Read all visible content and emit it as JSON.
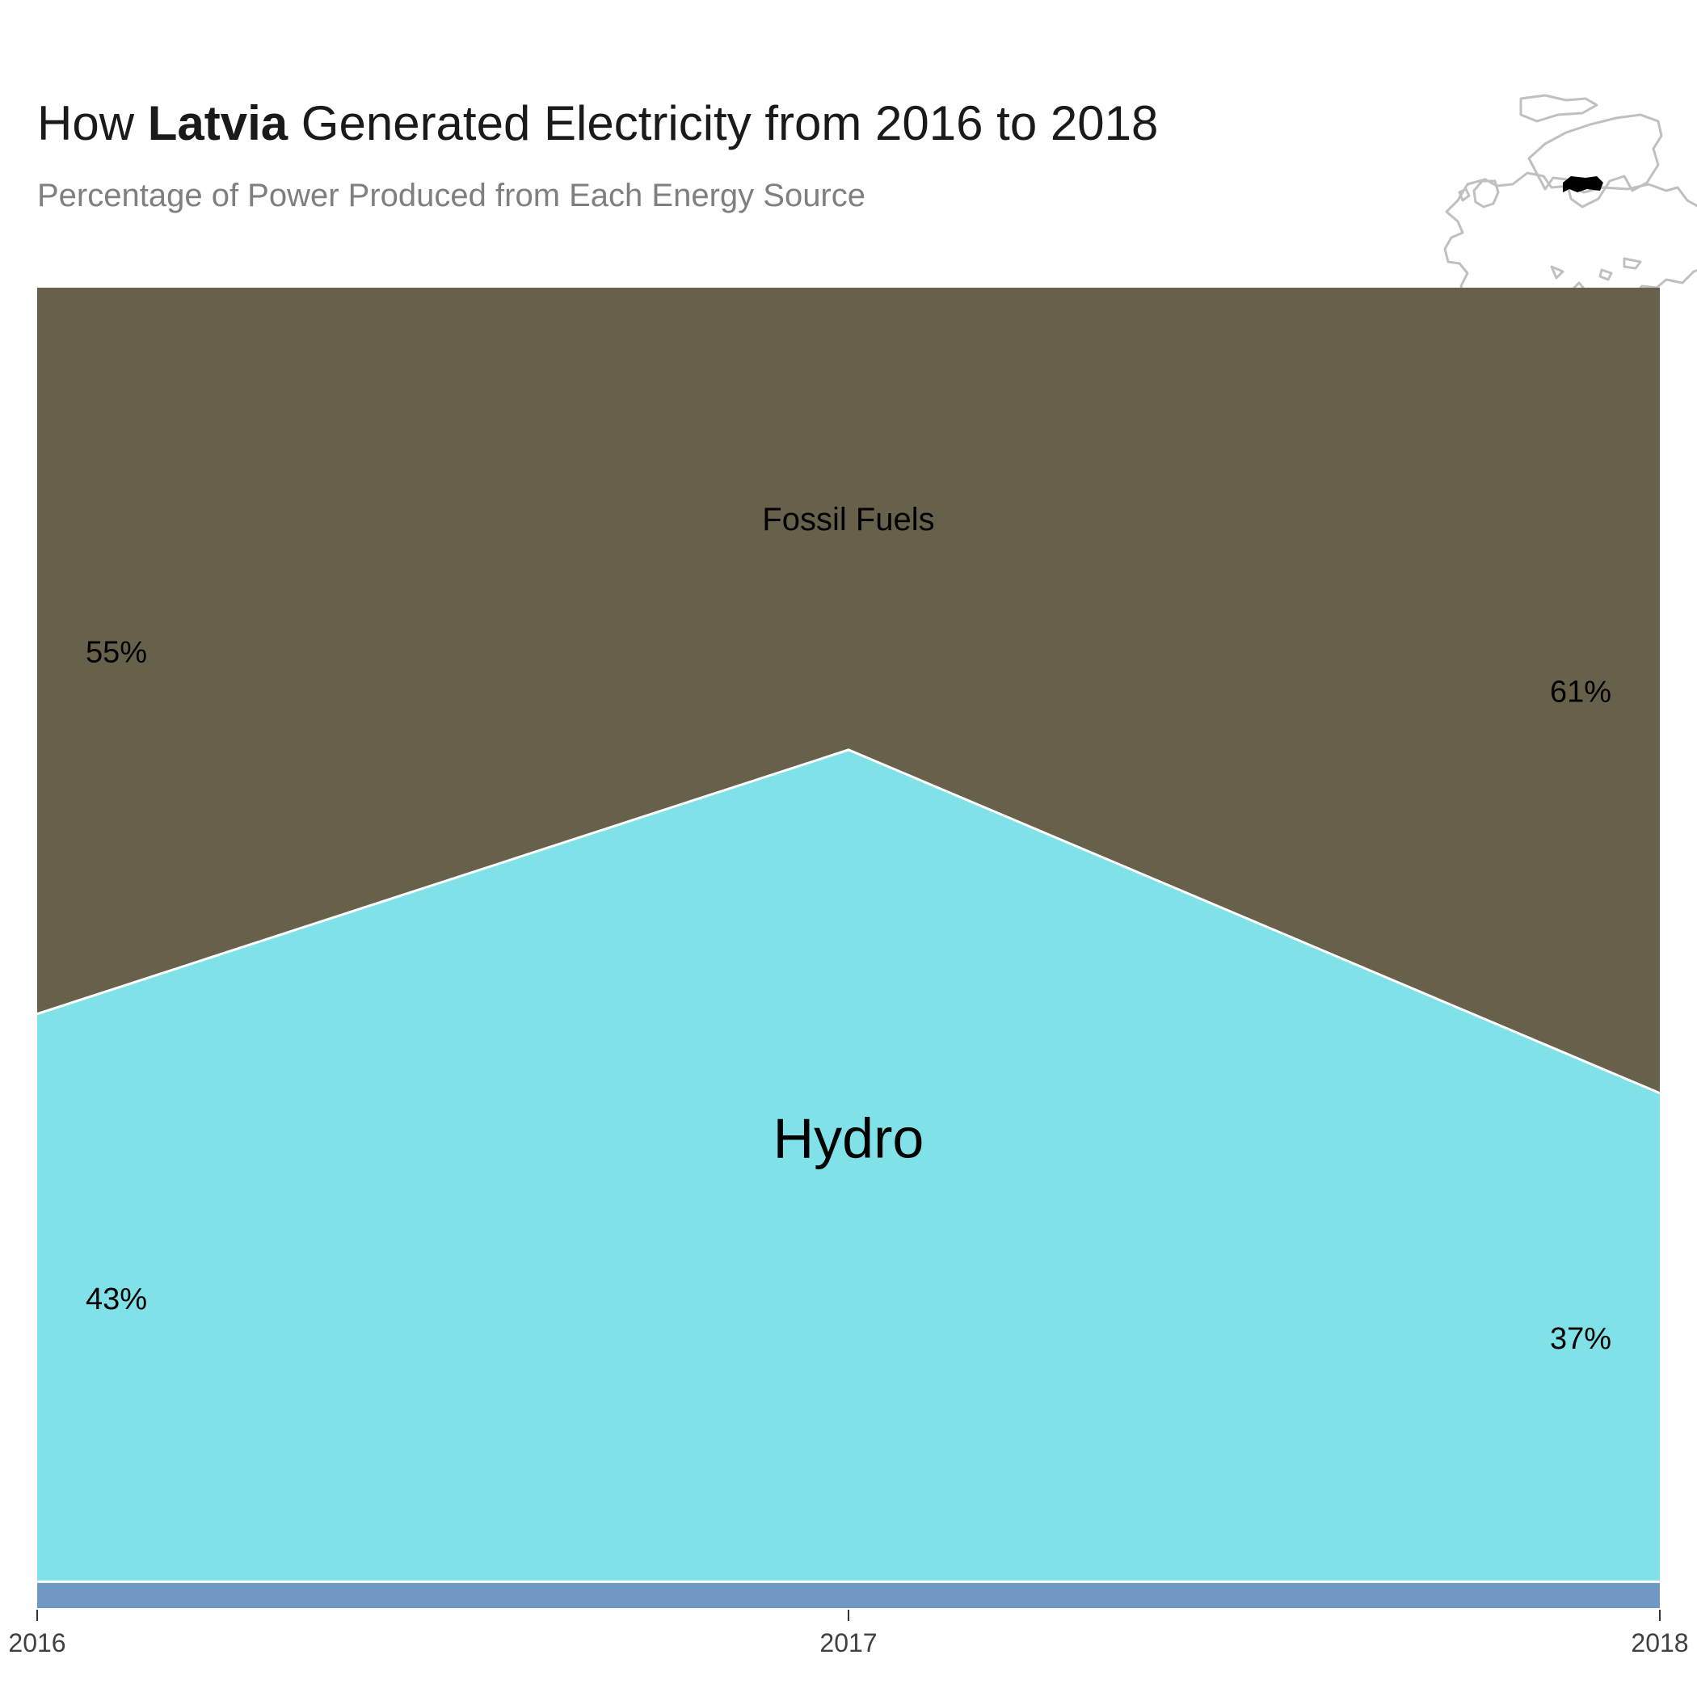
{
  "header": {
    "title_prefix": "How ",
    "title_country": "Latvia",
    "title_suffix": " Generated Electricity from 2016 to 2018",
    "subtitle": "Percentage of Power Produced from Each Energy Source"
  },
  "inset_map": {
    "highlight_color": "#000000",
    "outline_color": "#c0c0c0"
  },
  "chart_data": {
    "type": "area",
    "stacked": true,
    "normalized_percent": true,
    "x": [
      2016,
      2017,
      2018
    ],
    "ylim": [
      0,
      100
    ],
    "grid": false,
    "legend": "none (direct labels)",
    "series": [
      {
        "name": "",
        "values": [
          2,
          2,
          2
        ],
        "color": "#7098c4"
      },
      {
        "name": "Hydro",
        "values": [
          43,
          63,
          37
        ],
        "color": "#80e2e8"
      },
      {
        "name": "Fossil Fuels",
        "values": [
          55,
          35,
          61
        ],
        "color": "#67614c"
      }
    ],
    "series_labels": [
      {
        "series": "Hydro",
        "text": "Hydro"
      },
      {
        "series": "Fossil Fuels",
        "text": "Fossil Fuels"
      }
    ],
    "value_labels": [
      {
        "series": "Fossil Fuels",
        "x": 2016,
        "text": "55%"
      },
      {
        "series": "Fossil Fuels",
        "x": 2018,
        "text": "61%"
      },
      {
        "series": "Hydro",
        "x": 2016,
        "text": "43%"
      },
      {
        "series": "Hydro",
        "x": 2018,
        "text": "37%"
      }
    ],
    "x_tick_labels": [
      "2016",
      "2017",
      "2018"
    ]
  }
}
